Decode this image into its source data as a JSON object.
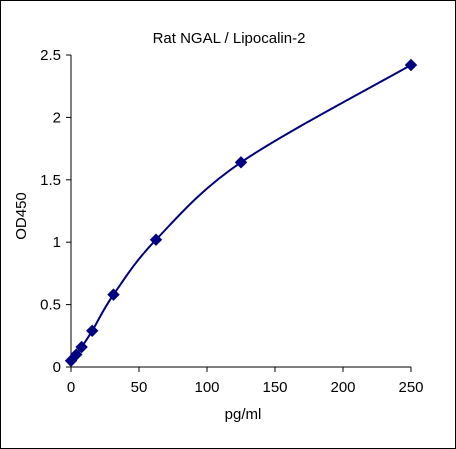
{
  "chart_data": {
    "type": "scatter",
    "title": "Rat  NGAL / Lipocalin-2",
    "xlabel": "pg/ml",
    "ylabel": "OD450",
    "xlim": [
      0,
      250
    ],
    "ylim": [
      0,
      2.5
    ],
    "x_ticks": [
      0,
      50,
      100,
      150,
      200,
      250
    ],
    "y_ticks": [
      0,
      0.5,
      1,
      1.5,
      2,
      2.5
    ],
    "x_tick_labels": [
      "0",
      "50",
      "100",
      "150",
      "200",
      "250"
    ],
    "y_tick_labels": [
      "0",
      "0.5",
      "1",
      "1.5",
      "2",
      "2.5"
    ],
    "grid": false,
    "legend": "none",
    "series": [
      {
        "color": "#000080",
        "marker": "diamond",
        "line": "smooth",
        "points": [
          {
            "x": 0,
            "y": 0.05
          },
          {
            "x": 3.9,
            "y": 0.1
          },
          {
            "x": 7.8,
            "y": 0.16
          },
          {
            "x": 15.6,
            "y": 0.29
          },
          {
            "x": 31.25,
            "y": 0.58
          },
          {
            "x": 62.5,
            "y": 1.02
          },
          {
            "x": 125,
            "y": 1.64
          },
          {
            "x": 250,
            "y": 2.42
          }
        ]
      }
    ]
  }
}
